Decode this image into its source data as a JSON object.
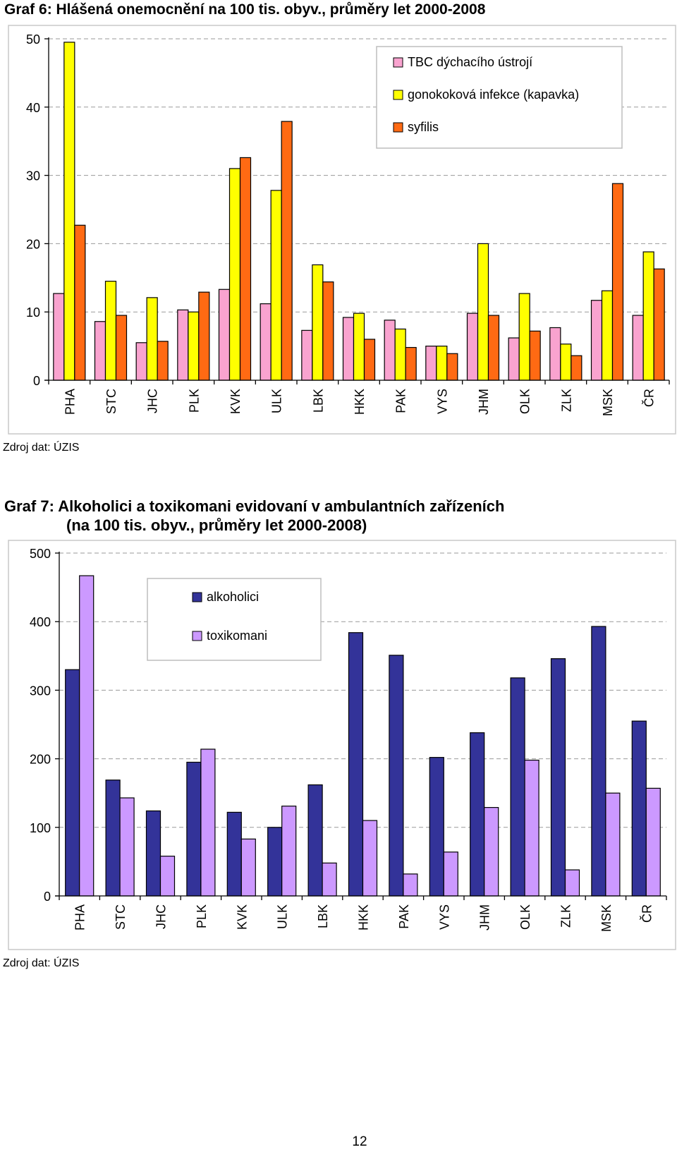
{
  "page_number": "12",
  "chart_data": [
    {
      "type": "bar",
      "title": "Graf 6: Hlášená onemocnění na 100 tis. obyv., průměry let 2000-2008",
      "title_lines": [
        "Graf 6: Hlášená onemocnění na 100 tis. obyv., průměry let 2000-2008"
      ],
      "source": "Zdroj dat: ÚZIS",
      "categories": [
        "PHA",
        "STC",
        "JHC",
        "PLK",
        "KVK",
        "ULK",
        "LBK",
        "HKK",
        "PAK",
        "VYS",
        "JHM",
        "OLK",
        "ZLK",
        "MSK",
        "ČR"
      ],
      "ylim": [
        0,
        50
      ],
      "yticks": [
        "0",
        "10",
        "20",
        "30",
        "40",
        "50"
      ],
      "grid": true,
      "legend_position": "top-right",
      "series": [
        {
          "name": "TBC dýchacího ústrojí",
          "color": "#f9a3cf",
          "values": [
            12.7,
            8.6,
            5.5,
            10.3,
            13.3,
            11.2,
            7.3,
            9.2,
            8.8,
            5.0,
            9.8,
            6.2,
            7.7,
            11.7,
            9.5
          ]
        },
        {
          "name": "gonokoková infekce (kapavka)",
          "color": "#ffff00",
          "values": [
            49.5,
            14.5,
            12.1,
            10.0,
            31.0,
            27.8,
            16.9,
            9.8,
            7.5,
            5.0,
            20.0,
            12.7,
            5.3,
            13.1,
            18.8
          ]
        },
        {
          "name": "syfilis",
          "color": "#ff6a13",
          "values": [
            22.7,
            9.5,
            5.7,
            12.9,
            32.6,
            37.9,
            14.4,
            6.0,
            4.8,
            3.9,
            9.5,
            7.2,
            3.6,
            28.8,
            16.3
          ]
        }
      ]
    },
    {
      "type": "bar",
      "title": "Graf 7: Alkoholici a toxikomani evidovaní v ambulantních zařízeních (na 100 tis. obyv., průměry let 2000-2008)",
      "title_lines": [
        "Graf 7: Alkoholici a toxikomani evidovaní v ambulantních zařízeních",
        "(na 100 tis. obyv., průměry let 2000-2008)"
      ],
      "source": "Zdroj dat: ÚZIS",
      "categories": [
        "PHA",
        "STC",
        "JHC",
        "PLK",
        "KVK",
        "ULK",
        "LBK",
        "HKK",
        "PAK",
        "VYS",
        "JHM",
        "OLK",
        "ZLK",
        "MSK",
        "ČR"
      ],
      "ylim": [
        0,
        500
      ],
      "yticks": [
        "0",
        "100",
        "200",
        "300",
        "400",
        "500"
      ],
      "grid": true,
      "legend_position": "top-center",
      "series": [
        {
          "name": "alkoholici",
          "color": "#333399",
          "values": [
            330,
            169,
            124,
            195,
            122,
            100,
            162,
            384,
            351,
            202,
            238,
            318,
            346,
            393,
            255
          ]
        },
        {
          "name": "toxikomani",
          "color": "#cc99ff",
          "values": [
            467,
            143,
            58,
            214,
            83,
            131,
            48,
            110,
            32,
            64,
            129,
            198,
            38,
            150,
            157
          ]
        }
      ]
    }
  ]
}
